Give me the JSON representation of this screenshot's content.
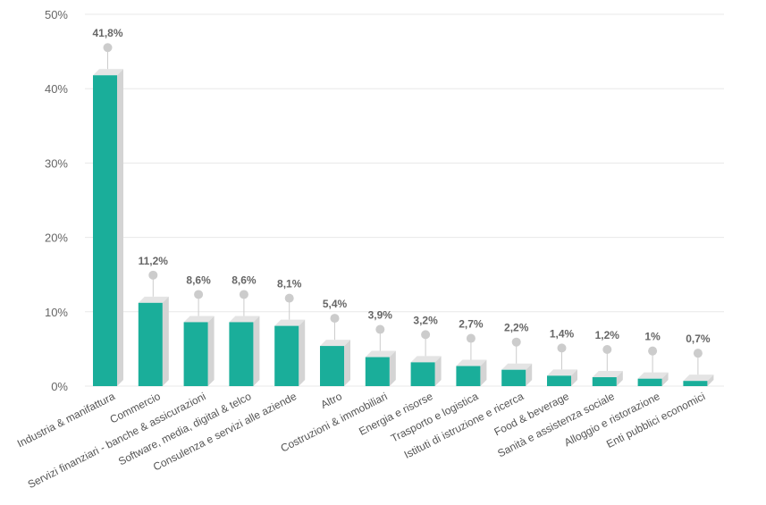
{
  "chart_data": {
    "type": "bar",
    "categories": [
      "Industria & manifattura",
      "Commercio",
      "Servizi finanziari - banche & assicurazioni",
      "Software, media, digital & telco",
      "Consulenza e servizi alle aziende",
      "Altro",
      "Costruzioni & immobiliari",
      "Energia e risorse",
      "Trasporto e logistica",
      "Istituti di istruzione e ricerca",
      "Food & beverage",
      "Sanità e assistenza sociale",
      "Alloggio e ristorazione",
      "Enti pubblici economici"
    ],
    "values": [
      41.8,
      11.2,
      8.6,
      8.6,
      8.1,
      5.4,
      3.9,
      3.2,
      2.7,
      2.2,
      1.4,
      1.2,
      1,
      0.7
    ],
    "data_labels": [
      "41,8%",
      "11,2%",
      "8,6%",
      "8,6%",
      "8,1%",
      "5,4%",
      "3,9%",
      "3,2%",
      "2,7%",
      "2,2%",
      "1,4%",
      "1,2%",
      "1%",
      "0,7%"
    ],
    "yticks": [
      "0%",
      "10%",
      "20%",
      "30%",
      "40%",
      "50%"
    ],
    "ylim": [
      0,
      50
    ],
    "title": "",
    "xlabel": "",
    "ylabel": "",
    "grid": true,
    "legend": "none",
    "colors": {
      "bar_front": "#1aae9a",
      "bar_side": "#d4d4d4",
      "bar_top": "#e4e4e4",
      "gridline": "#e8e8e8",
      "marker": "#cccccc"
    }
  }
}
